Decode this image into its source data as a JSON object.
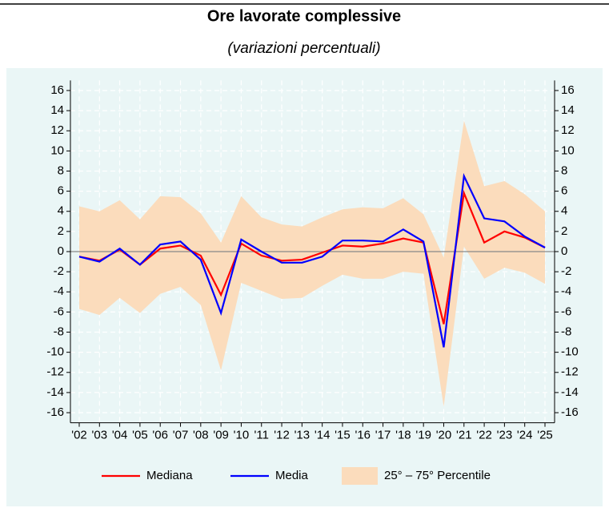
{
  "chart_data": {
    "type": "line",
    "title": "Ore lavorate complessive",
    "subtitle": "(variazioni percentuali)",
    "categories": [
      "'02",
      "'03",
      "'04",
      "'05",
      "'06",
      "'07",
      "'08",
      "'09",
      "'10",
      "'11",
      "'12",
      "'13",
      "'14",
      "'15",
      "'16",
      "'17",
      "'18",
      "'19",
      "'20",
      "'21",
      "'22",
      "'23",
      "'24",
      "'25"
    ],
    "series": [
      {
        "name": "Mediana",
        "color": "#ff0000",
        "values": [
          -0.5,
          -0.9,
          0.2,
          -1.3,
          0.3,
          0.6,
          -0.4,
          -4.3,
          0.8,
          -0.4,
          -0.9,
          -0.8,
          -0.1,
          0.6,
          0.5,
          0.8,
          1.3,
          0.9,
          -7.2,
          5.8,
          0.9,
          2.0,
          1.4,
          0.4
        ]
      },
      {
        "name": "Media",
        "color": "#0000ff",
        "values": [
          -0.5,
          -1.0,
          0.3,
          -1.3,
          0.7,
          1.0,
          -0.8,
          -6.1,
          1.2,
          0.0,
          -1.1,
          -1.1,
          -0.5,
          1.1,
          1.1,
          1.0,
          2.2,
          1.0,
          -9.5,
          7.5,
          3.3,
          3.0,
          1.5,
          0.4
        ]
      }
    ],
    "band": {
      "name": "25° – 75° Percentile",
      "color": "#fbdcbc",
      "low": [
        -5.7,
        -6.3,
        -4.6,
        -6.1,
        -4.2,
        -3.5,
        -5.3,
        -11.8,
        -3.1,
        -3.9,
        -4.7,
        -4.6,
        -3.4,
        -2.3,
        -2.7,
        -2.7,
        -2.0,
        -2.2,
        -15.4,
        0.5,
        -2.7,
        -1.6,
        -2.1,
        -3.2
      ],
      "high": [
        4.5,
        4.0,
        5.1,
        3.2,
        5.5,
        5.4,
        3.8,
        0.9,
        5.5,
        3.4,
        2.7,
        2.5,
        3.4,
        4.2,
        4.4,
        4.3,
        5.3,
        3.7,
        -0.6,
        13.0,
        6.5,
        7.0,
        5.7,
        4.0
      ]
    },
    "ylim": [
      -17,
      17
    ],
    "yticks": [
      -16,
      -14,
      -12,
      -10,
      -8,
      -6,
      -4,
      -2,
      0,
      2,
      4,
      6,
      8,
      10,
      12,
      14,
      16
    ],
    "grid": true
  }
}
